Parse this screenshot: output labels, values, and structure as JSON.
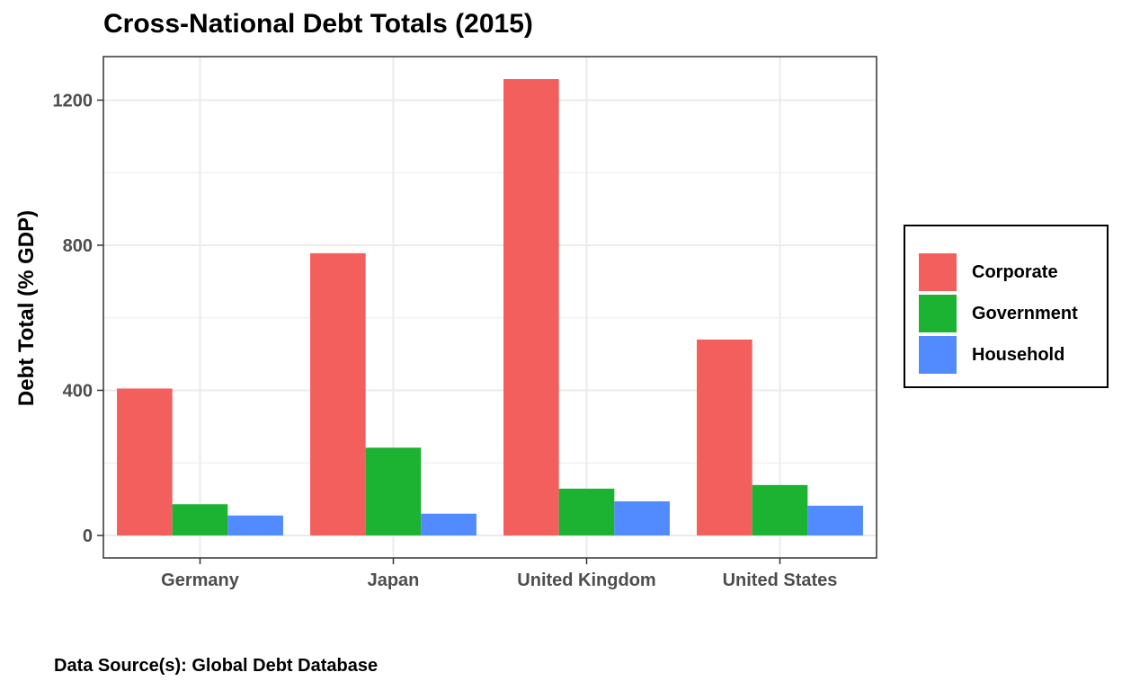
{
  "chart_data": {
    "type": "bar",
    "title": "Cross-National Debt Totals (2015)",
    "xlabel": "",
    "ylabel": "Debt Total (% GDP)",
    "caption": "Data Source(s): Global Debt Database",
    "categories": [
      "Germany",
      "Japan",
      "United Kingdom",
      "United States"
    ],
    "series": [
      {
        "name": "Corporate",
        "color": "#F25F5C",
        "values": [
          405,
          778,
          1258,
          540
        ]
      },
      {
        "name": "Government",
        "color": "#1CB232",
        "values": [
          86,
          242,
          129,
          139
        ]
      },
      {
        "name": "Household",
        "color": "#528BFF",
        "values": [
          55,
          60,
          94,
          82
        ]
      }
    ],
    "yticks": [
      0,
      400,
      800,
      1200
    ],
    "yticks_labels": [
      "0",
      "400",
      "800",
      "1200"
    ],
    "ylim": [
      -62,
      1320
    ],
    "grid": true,
    "legend_position": "right"
  }
}
